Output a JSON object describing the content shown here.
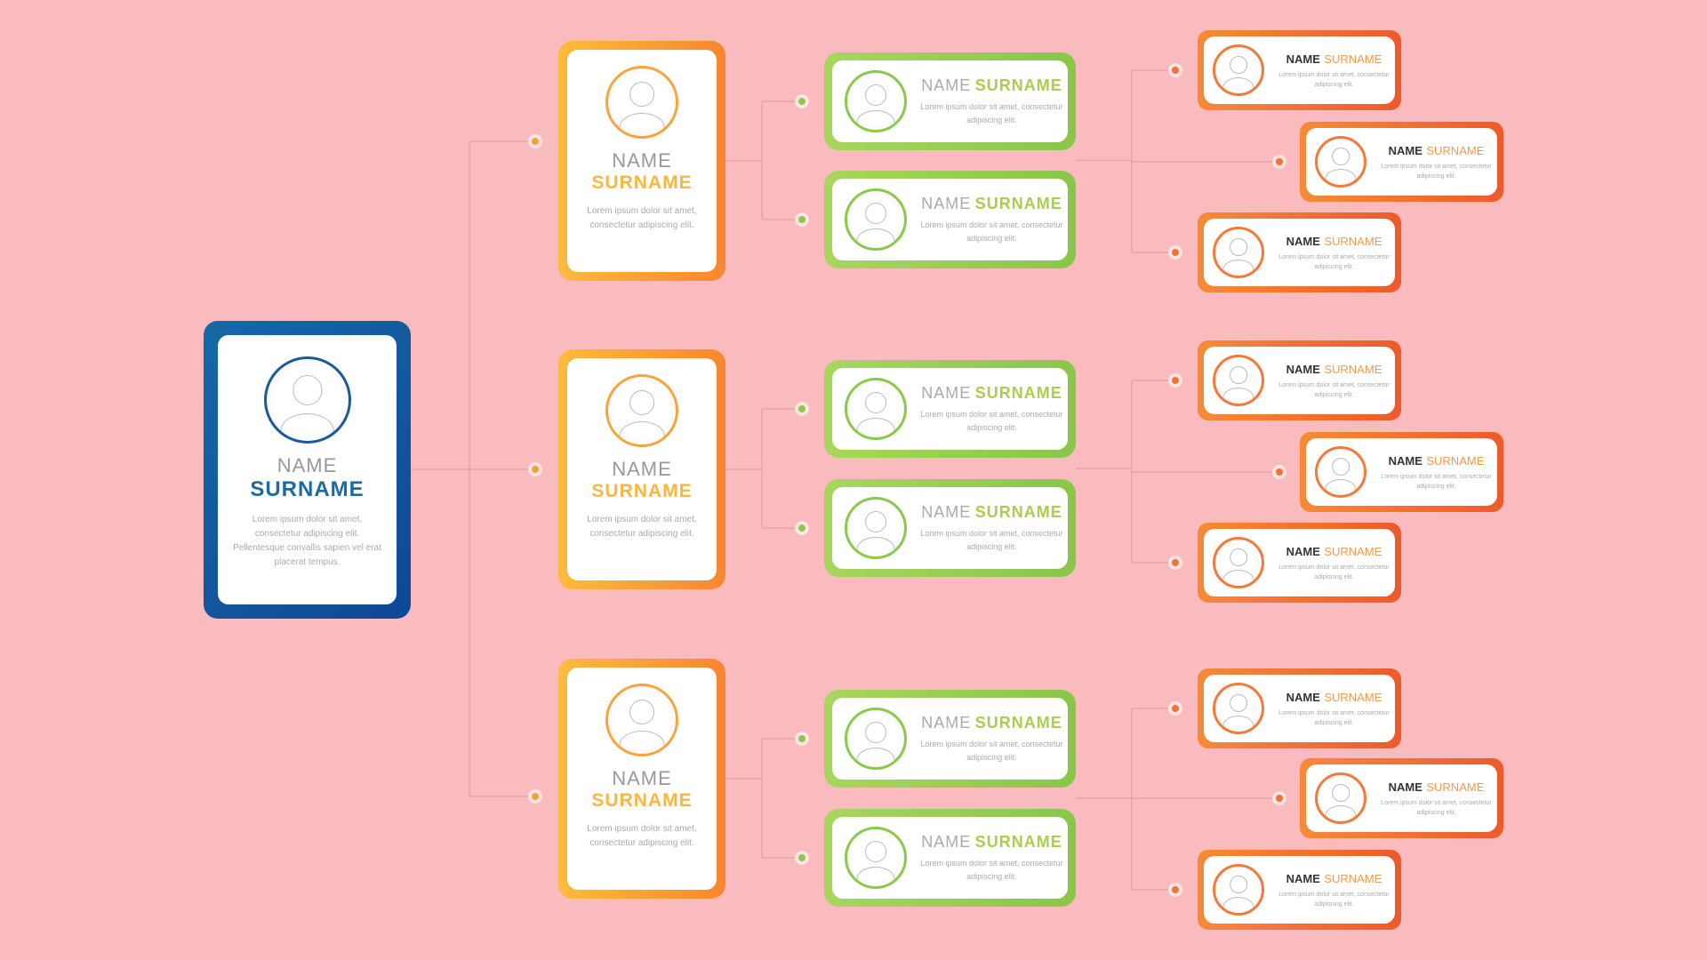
{
  "colors": {
    "background": "#f9bbbe",
    "root": "#1565a3",
    "level1": "#f9a037",
    "level2": "#97cd50",
    "level3": "#f27235",
    "dot_level1": "#f9a037",
    "dot_level2": "#8cc84b",
    "dot_level3": "#f27235"
  },
  "root": {
    "name": "NAME",
    "surname": "SURNAME",
    "desc": "Lorem ipsum dolor sit amet, consectetur adipiscing elit. Pellentesque convallis sapien vel erat placerat tempus.",
    "icon": "user-avatar-icon"
  },
  "level1": [
    {
      "name": "NAME",
      "surname": "SURNAME",
      "desc": "Lorem ipsum dolor sit amet, consectetur adipiscing elit."
    },
    {
      "name": "NAME",
      "surname": "SURNAME",
      "desc": "Lorem ipsum dolor sit amet, consectetur adipiscing elit."
    },
    {
      "name": "NAME",
      "surname": "SURNAME",
      "desc": "Lorem ipsum dolor sit amet, consectetur adipiscing elit."
    }
  ],
  "level2": [
    {
      "name": "NAME",
      "surname": "SURNAME",
      "desc": "Lorem ipsum dolor sit amet, consectetur adipiscing elit."
    },
    {
      "name": "NAME",
      "surname": "SURNAME",
      "desc": "Lorem ipsum dolor sit amet, consectetur adipiscing elit."
    },
    {
      "name": "NAME",
      "surname": "SURNAME",
      "desc": "Lorem ipsum dolor sit amet, consectetur adipiscing elit."
    },
    {
      "name": "NAME",
      "surname": "SURNAME",
      "desc": "Lorem ipsum dolor sit amet, consectetur adipiscing elit."
    },
    {
      "name": "NAME",
      "surname": "SURNAME",
      "desc": "Lorem ipsum dolor sit amet, consectetur adipiscing elit."
    },
    {
      "name": "NAME",
      "surname": "SURNAME",
      "desc": "Lorem ipsum dolor sit amet, consectetur adipiscing elit."
    }
  ],
  "level3": [
    {
      "name": "NAME",
      "surname": "SURNAME",
      "desc": "Lorem ipsum dolor sit amet, consectetur adipiscing elit."
    },
    {
      "name": "NAME",
      "surname": "SURNAME",
      "desc": "Lorem ipsum dolor sit amet, consectetur adipiscing elit."
    },
    {
      "name": "NAME",
      "surname": "SURNAME",
      "desc": "Lorem ipsum dolor sit amet, consectetur adipiscing elit."
    },
    {
      "name": "NAME",
      "surname": "SURNAME",
      "desc": "Lorem ipsum dolor sit amet, consectetur adipiscing elit."
    },
    {
      "name": "NAME",
      "surname": "SURNAME",
      "desc": "Lorem ipsum dolor sit amet, consectetur adipiscing elit."
    },
    {
      "name": "NAME",
      "surname": "SURNAME",
      "desc": "Lorem ipsum dolor sit amet, consectetur adipiscing elit."
    },
    {
      "name": "NAME",
      "surname": "SURNAME",
      "desc": "Lorem ipsum dolor sit amet, consectetur adipiscing elit."
    },
    {
      "name": "NAME",
      "surname": "SURNAME",
      "desc": "Lorem ipsum dolor sit amet, consectetur adipiscing elit."
    },
    {
      "name": "NAME",
      "surname": "SURNAME",
      "desc": "Lorem ipsum dolor sit amet, consectetur adipiscing elit."
    }
  ]
}
